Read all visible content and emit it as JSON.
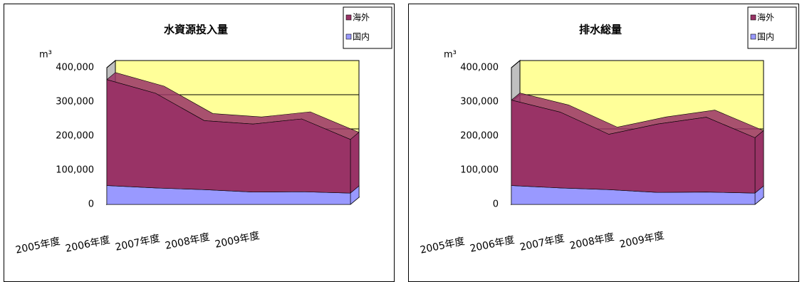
{
  "chart_data": [
    {
      "type": "area",
      "stacked": true,
      "title": "水資源投入量",
      "ylabel": "m³",
      "categories": [
        "2005年度",
        "2006年度",
        "2007年度",
        "2008年度",
        "2009年度",
        null
      ],
      "series": [
        {
          "name": "海外",
          "color": "#993366",
          "values": [
            310000,
            277000,
            202000,
            199000,
            213000,
            157000
          ]
        },
        {
          "name": "国内",
          "color": "#9999ff",
          "values": [
            55000,
            48000,
            43000,
            36000,
            37000,
            33000
          ]
        }
      ],
      "ylim": [
        0,
        400000
      ],
      "yticks": [
        0,
        {
          "value": 100000,
          "label": "100,000"
        },
        {
          "value": 200000,
          "label": "200,000"
        },
        {
          "value": 300000,
          "label": "300,000"
        },
        {
          "value": 400000,
          "label": "400,000"
        }
      ],
      "grid": true,
      "legend": "top-right"
    },
    {
      "type": "area",
      "stacked": true,
      "title": "排水総量",
      "ylabel": "m³",
      "categories": [
        "2005年度",
        "2006年度",
        "2007年度",
        "2008年度",
        "2009年度",
        null
      ],
      "series": [
        {
          "name": "海外",
          "color": "#993366",
          "values": [
            250000,
            222000,
            162000,
            200000,
            219000,
            162000
          ]
        },
        {
          "name": "国内",
          "color": "#9999ff",
          "values": [
            55000,
            48000,
            43000,
            35000,
            36000,
            33000
          ]
        }
      ],
      "ylim": [
        0,
        400000
      ],
      "yticks": [
        0,
        {
          "value": 100000,
          "label": "100,000"
        },
        {
          "value": 200000,
          "label": "200,000"
        },
        {
          "value": 300000,
          "label": "300,000"
        },
        {
          "value": 400000,
          "label": "400,000"
        }
      ],
      "grid": true,
      "legend": "top-right"
    }
  ]
}
